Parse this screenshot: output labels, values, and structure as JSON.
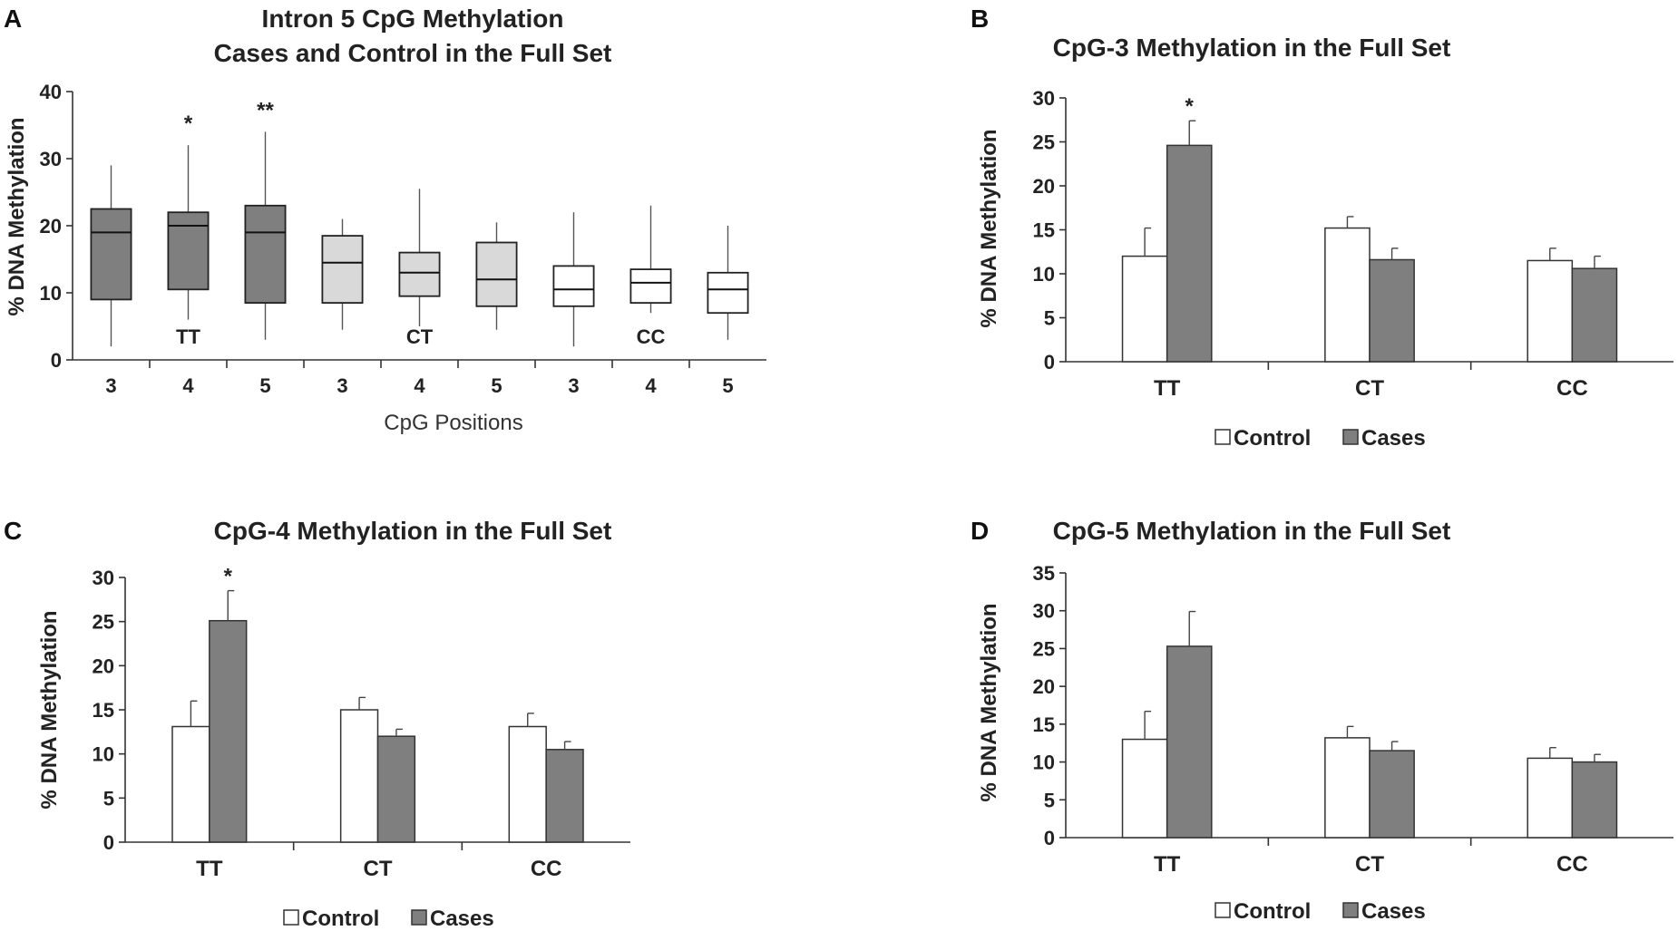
{
  "colors": {
    "cases": "#7f7f7f",
    "control": "#ffffff",
    "ct_box": "#d9d9d9",
    "axis": "#333333"
  },
  "panels": {
    "A": {
      "label": "A"
    },
    "B": {
      "label": "B"
    },
    "C": {
      "label": "C"
    },
    "D": {
      "label": "D"
    }
  },
  "chart_data": [
    {
      "id": "A",
      "type": "boxplot",
      "title_line1": "Intron 5 CpG Methylation",
      "title_line2": "Cases and Control in the Full Set",
      "ylabel": "% DNA Methylation",
      "xlabel": "CpG Positions",
      "ylim": [
        0,
        40
      ],
      "yticks": [
        0,
        10,
        20,
        30,
        40
      ],
      "groups": [
        {
          "name": "TT",
          "fill": "#7f7f7f",
          "boxes": [
            {
              "label": "3",
              "min": 2,
              "q1": 9,
              "median": 19,
              "q3": 22.5,
              "max": 29,
              "sig": ""
            },
            {
              "label": "4",
              "min": 6,
              "q1": 10.5,
              "median": 20,
              "q3": 22,
              "max": 32,
              "sig": "*"
            },
            {
              "label": "5",
              "min": 3,
              "q1": 8.5,
              "median": 19,
              "q3": 23,
              "max": 34,
              "sig": "**"
            }
          ]
        },
        {
          "name": "CT",
          "fill": "#d9d9d9",
          "boxes": [
            {
              "label": "3",
              "min": 4.5,
              "q1": 8.5,
              "median": 14.5,
              "q3": 18.5,
              "max": 21,
              "sig": ""
            },
            {
              "label": "4",
              "min": 5,
              "q1": 9.5,
              "median": 13,
              "q3": 16,
              "max": 25.5,
              "sig": ""
            },
            {
              "label": "5",
              "min": 4.5,
              "q1": 8,
              "median": 12,
              "q3": 17.5,
              "max": 20.5,
              "sig": ""
            }
          ]
        },
        {
          "name": "CC",
          "fill": "#ffffff",
          "boxes": [
            {
              "label": "3",
              "min": 2,
              "q1": 8,
              "median": 10.5,
              "q3": 14,
              "max": 22,
              "sig": ""
            },
            {
              "label": "4",
              "min": 7,
              "q1": 8.5,
              "median": 11.5,
              "q3": 13.5,
              "max": 23,
              "sig": ""
            },
            {
              "label": "5",
              "min": 3,
              "q1": 7,
              "median": 10.5,
              "q3": 13,
              "max": 20,
              "sig": ""
            }
          ]
        }
      ]
    },
    {
      "id": "B",
      "type": "bar",
      "title": "CpG-3 Methylation in the Full Set",
      "ylabel": "% DNA Methylation",
      "ylim": [
        0,
        30
      ],
      "yticks": [
        0,
        5,
        10,
        15,
        20,
        25,
        30
      ],
      "categories": [
        "TT",
        "CT",
        "CC"
      ],
      "series": [
        {
          "name": "Control",
          "values": [
            12,
            15.2,
            11.5
          ],
          "errors": [
            3.2,
            1.3,
            1.4
          ]
        },
        {
          "name": "Cases",
          "values": [
            24.6,
            11.6,
            10.6
          ],
          "errors": [
            2.8,
            1.3,
            1.4
          ]
        }
      ],
      "significance": [
        {
          "category": "TT",
          "series": "Cases",
          "mark": "*"
        }
      ],
      "legend": [
        "Control",
        "Cases"
      ]
    },
    {
      "id": "C",
      "type": "bar",
      "title": "CpG-4 Methylation in the Full Set",
      "ylabel": "% DNA Methylation",
      "ylim": [
        0,
        30
      ],
      "yticks": [
        0,
        5,
        10,
        15,
        20,
        25,
        30
      ],
      "categories": [
        "TT",
        "CT",
        "CC"
      ],
      "series": [
        {
          "name": "Control",
          "values": [
            13.1,
            15,
            13.1
          ],
          "errors": [
            2.9,
            1.4,
            1.5
          ]
        },
        {
          "name": "Cases",
          "values": [
            25.1,
            12,
            10.5
          ],
          "errors": [
            3.4,
            0.8,
            0.9
          ]
        }
      ],
      "significance": [
        {
          "category": "TT",
          "series": "Cases",
          "mark": "*"
        }
      ],
      "legend": [
        "Control",
        "Cases"
      ]
    },
    {
      "id": "D",
      "type": "bar",
      "title": "CpG-5 Methylation in the Full Set",
      "ylabel": "% DNA Methylation",
      "ylim": [
        0,
        35
      ],
      "yticks": [
        0,
        5,
        10,
        15,
        20,
        25,
        30,
        35
      ],
      "categories": [
        "TT",
        "CT",
        "CC"
      ],
      "series": [
        {
          "name": "Control",
          "values": [
            13,
            13.2,
            10.5
          ],
          "errors": [
            3.7,
            1.5,
            1.4
          ]
        },
        {
          "name": "Cases",
          "values": [
            25.3,
            11.5,
            10
          ],
          "errors": [
            4.6,
            1.2,
            1
          ]
        }
      ],
      "significance": [],
      "legend": [
        "Control",
        "Cases"
      ]
    }
  ]
}
